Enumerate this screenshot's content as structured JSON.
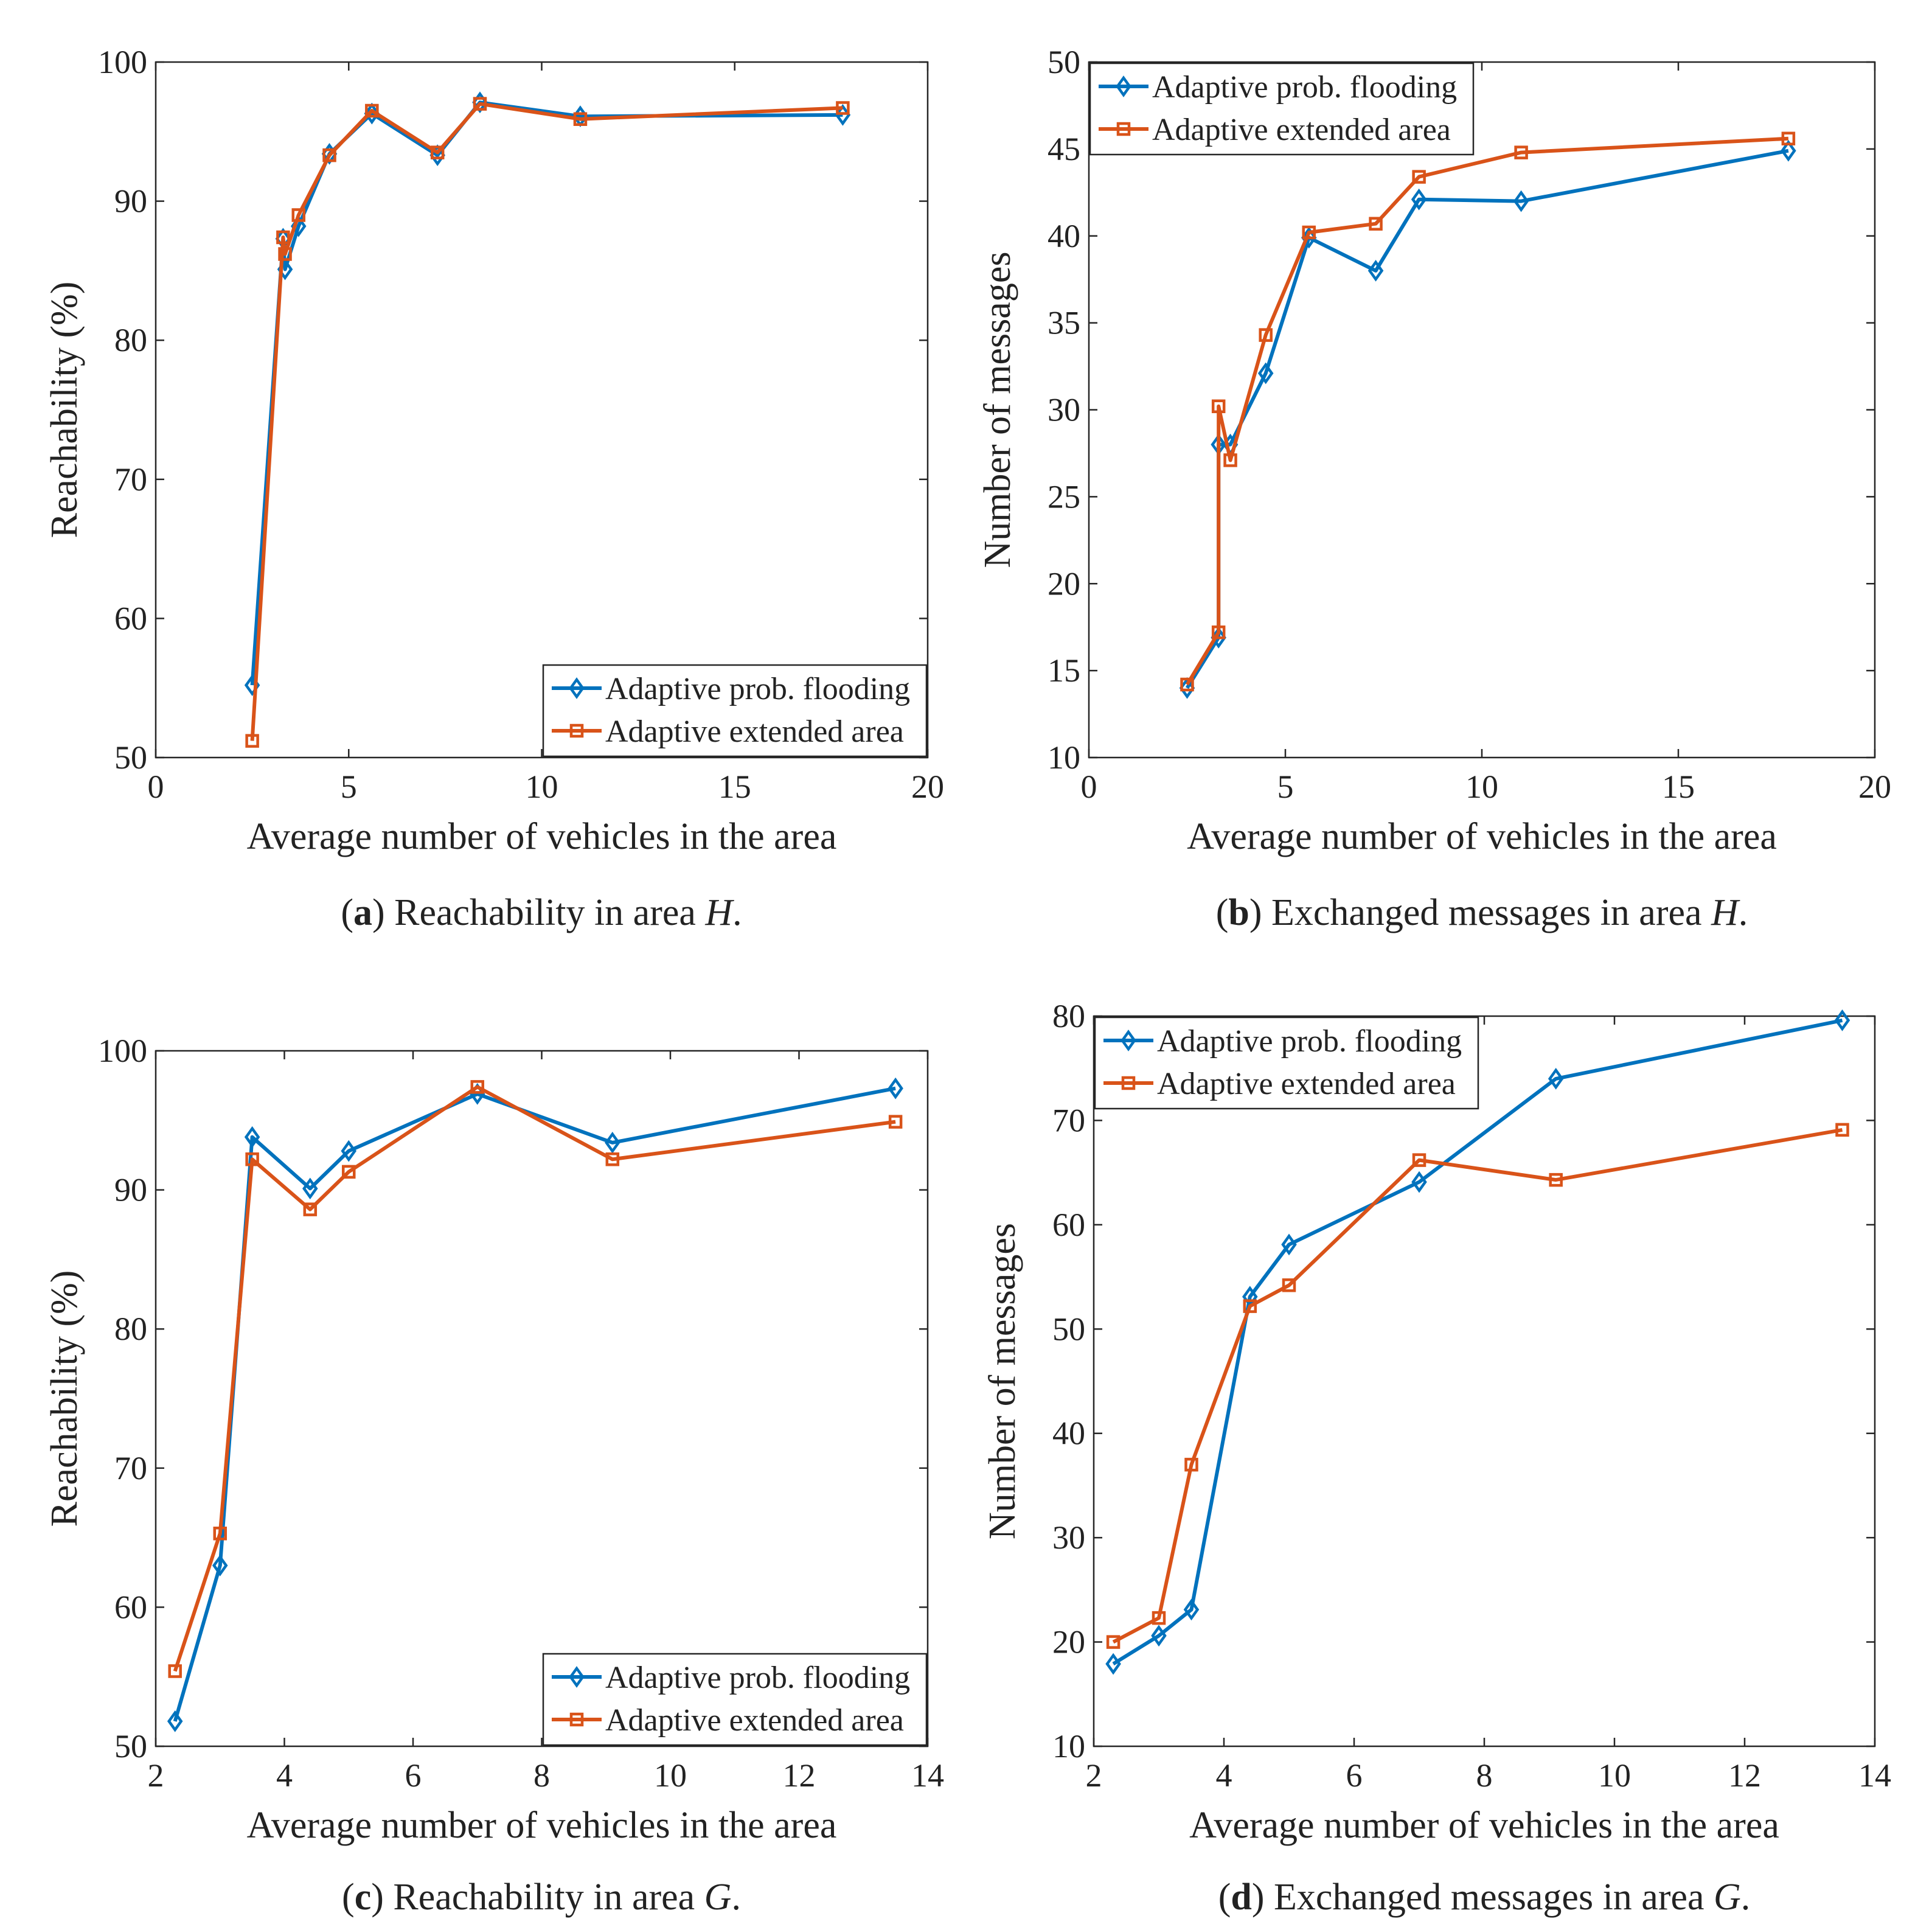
{
  "colors": {
    "series1": "#0072BD",
    "series2": "#D95319",
    "axis": "#262626"
  },
  "chart_data": [
    {
      "type": "line",
      "panel": "a",
      "xlabel": "Average number of vehicles in the area",
      "ylabel": "Reachability (%)",
      "xlim": [
        0,
        20
      ],
      "ylim": [
        50,
        100
      ],
      "xticks": [
        0,
        5,
        10,
        15,
        20
      ],
      "yticks": [
        50,
        60,
        70,
        80,
        90,
        100
      ],
      "legend_position": "bottom-right",
      "caption": {
        "letter": "a",
        "text": " Reachability in area ",
        "var": "H",
        "end": "."
      },
      "series": [
        {
          "name": "Adaptive prob. flooding",
          "marker": "diamond",
          "x": [
            2.5,
            3.3,
            3.35,
            3.7,
            4.5,
            5.6,
            7.3,
            8.4,
            11,
            17.8
          ],
          "y": [
            55.2,
            87.3,
            85.1,
            88.2,
            93.4,
            96.3,
            93.3,
            97.1,
            96.1,
            96.2
          ]
        },
        {
          "name": "Adaptive extended area",
          "marker": "square",
          "x": [
            2.5,
            3.3,
            3.35,
            3.7,
            4.5,
            5.6,
            7.3,
            8.4,
            11,
            17.8
          ],
          "y": [
            51.2,
            87.4,
            86.2,
            89.0,
            93.3,
            96.5,
            93.5,
            97.0,
            95.9,
            96.7
          ]
        }
      ]
    },
    {
      "type": "line",
      "panel": "b",
      "xlabel": "Average number of vehicles in the area",
      "ylabel": "Number of messages",
      "xlim": [
        0,
        20
      ],
      "ylim": [
        10,
        50
      ],
      "xticks": [
        0,
        5,
        10,
        15,
        20
      ],
      "yticks": [
        10,
        15,
        20,
        25,
        30,
        35,
        40,
        45,
        50
      ],
      "legend_position": "top-left",
      "caption": {
        "letter": "b",
        "text": " Exchanged messages in area ",
        "var": "H",
        "end": "."
      },
      "series": [
        {
          "name": "Adaptive prob. flooding",
          "marker": "diamond",
          "x": [
            2.5,
            3.3,
            3.3,
            3.6,
            4.5,
            5.6,
            7.3,
            8.4,
            11,
            17.8
          ],
          "y": [
            14.0,
            16.9,
            28.0,
            28.0,
            32.1,
            39.9,
            38.0,
            42.1,
            42.0,
            44.9
          ]
        },
        {
          "name": "Adaptive extended area",
          "marker": "square",
          "x": [
            2.5,
            3.3,
            3.3,
            3.6,
            4.5,
            5.6,
            7.3,
            8.4,
            11,
            17.8
          ],
          "y": [
            14.2,
            17.2,
            30.2,
            27.1,
            34.3,
            40.2,
            40.7,
            43.4,
            44.8,
            45.6
          ]
        }
      ]
    },
    {
      "type": "line",
      "panel": "c",
      "xlabel": "Average number of vehicles in the area",
      "ylabel": "Reachability (%)",
      "xlim": [
        2,
        14
      ],
      "ylim": [
        50,
        100
      ],
      "xticks": [
        2,
        4,
        6,
        8,
        10,
        12,
        14
      ],
      "yticks": [
        50,
        60,
        70,
        80,
        90,
        100
      ],
      "legend_position": "bottom-right",
      "caption": {
        "letter": "c",
        "text": " Reachability in area ",
        "var": "G",
        "end": "."
      },
      "series": [
        {
          "name": "Adaptive prob. flooding",
          "marker": "diamond",
          "x": [
            2.3,
            3.0,
            3.5,
            4.4,
            5.0,
            7.0,
            9.1,
            13.5
          ],
          "y": [
            51.8,
            63.0,
            93.8,
            90.1,
            92.8,
            96.9,
            93.4,
            97.3
          ]
        },
        {
          "name": "Adaptive extended area",
          "marker": "square",
          "x": [
            2.3,
            3.0,
            3.5,
            4.4,
            5.0,
            7.0,
            9.1,
            13.5
          ],
          "y": [
            55.4,
            65.3,
            92.2,
            88.6,
            91.3,
            97.4,
            92.2,
            94.9
          ]
        }
      ]
    },
    {
      "type": "line",
      "panel": "d",
      "xlabel": "Average number of vehicles in the area",
      "ylabel": "Number of messages",
      "xlim": [
        2,
        14
      ],
      "ylim": [
        10,
        80
      ],
      "xticks": [
        2,
        4,
        6,
        8,
        10,
        12,
        14
      ],
      "yticks": [
        10,
        20,
        30,
        40,
        50,
        60,
        70,
        80
      ],
      "legend_position": "top-left",
      "caption": {
        "letter": "d",
        "text": " Exchanged messages in area ",
        "var": "G",
        "end": "."
      },
      "series": [
        {
          "name": "Adaptive prob. flooding",
          "marker": "diamond",
          "x": [
            2.3,
            3.0,
            3.5,
            4.4,
            5.0,
            7.0,
            9.1,
            13.5
          ],
          "y": [
            17.9,
            20.6,
            23.1,
            53.1,
            58.1,
            64.1,
            74.0,
            79.6
          ]
        },
        {
          "name": "Adaptive extended area",
          "marker": "square",
          "x": [
            2.3,
            3.0,
            3.5,
            4.4,
            5.0,
            7.0,
            9.1,
            13.5
          ],
          "y": [
            20.0,
            22.3,
            37.0,
            52.2,
            54.2,
            66.2,
            64.3,
            69.1
          ]
        }
      ]
    }
  ]
}
